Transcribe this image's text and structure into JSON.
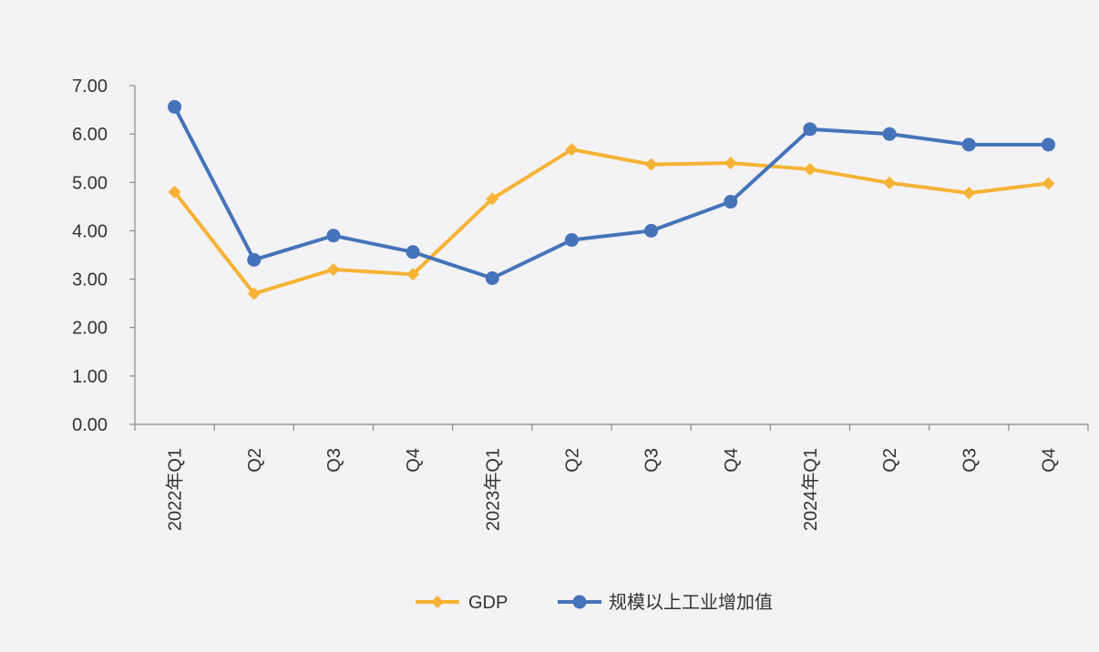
{
  "chart_data": {
    "type": "line",
    "categories": [
      "2022年Q1",
      "Q2",
      "Q3",
      "Q4",
      "2023年Q1",
      "Q2",
      "Q3",
      "Q4",
      "2024年Q1",
      "Q2",
      "Q3",
      "Q4"
    ],
    "y_ticks": [
      "0.00",
      "1.00",
      "2.00",
      "3.00",
      "4.00",
      "5.00",
      "6.00",
      "7.00"
    ],
    "ylim": [
      0,
      7
    ],
    "grid": false,
    "legend_position": "bottom",
    "series": [
      {
        "name": "GDP",
        "color": "#f5b335",
        "marker": "diamond",
        "values": [
          4.8,
          2.7,
          3.2,
          3.1,
          4.66,
          5.68,
          5.37,
          5.4,
          5.27,
          4.99,
          4.78,
          4.98
        ]
      },
      {
        "name": "规模以上工业增加值",
        "color": "#4573b9",
        "marker": "circle",
        "values": [
          6.56,
          3.4,
          3.9,
          3.56,
          3.02,
          3.81,
          4.0,
          4.6,
          6.1,
          6.0,
          5.78,
          5.78
        ]
      }
    ]
  }
}
